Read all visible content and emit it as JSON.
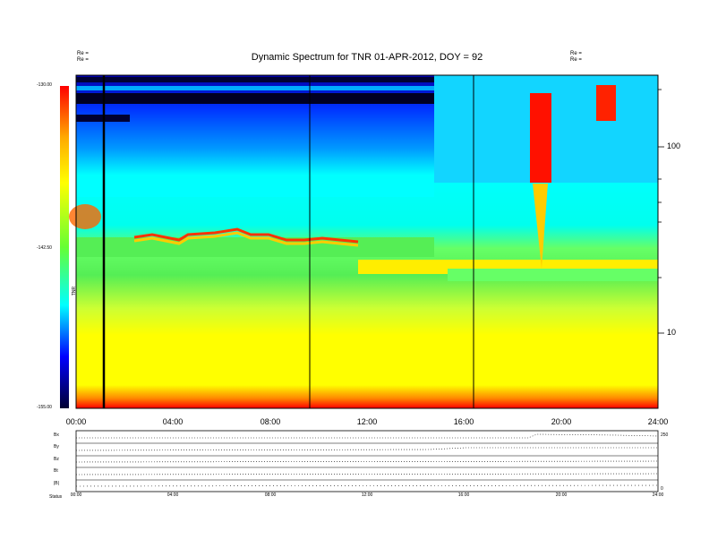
{
  "chart_data": [
    {
      "type": "heatmap",
      "title": "Dynamic Spectrum for TNR 01-APR-2012, DOY = 92",
      "header_left": [
        "Re =",
        "Re ="
      ],
      "header_right": [
        "Re =",
        "Re ="
      ],
      "colorbar": {
        "label": "TNR",
        "ticks": [
          "-130.00",
          "-142.50",
          "-155.00"
        ],
        "range": [
          -155.0,
          -130.0
        ],
        "colors": [
          "#000055",
          "#0000ff",
          "#00ffff",
          "#00cc44",
          "#ffff00",
          "#ff0000"
        ]
      },
      "x_ticks": [
        "00:00",
        "04:00",
        "08:00",
        "12:00",
        "16:00",
        "20:00",
        "24:00"
      ],
      "x_range_hours": [
        0,
        24
      ],
      "y_ticks": [
        "100",
        "10"
      ],
      "y_scale": "log",
      "marker_lines_hours": [
        1.2,
        9.6,
        16.4
      ]
    },
    {
      "type": "line",
      "panel_labels": [
        "Bx",
        "By",
        "Bz",
        "Bt",
        "|B|",
        "Status"
      ],
      "right_ticks": [
        "250",
        "0"
      ],
      "x_ticks": [
        "00:00",
        "04:00",
        "08:00",
        "12:00",
        "16:00",
        "20:00",
        "24:00"
      ]
    }
  ]
}
